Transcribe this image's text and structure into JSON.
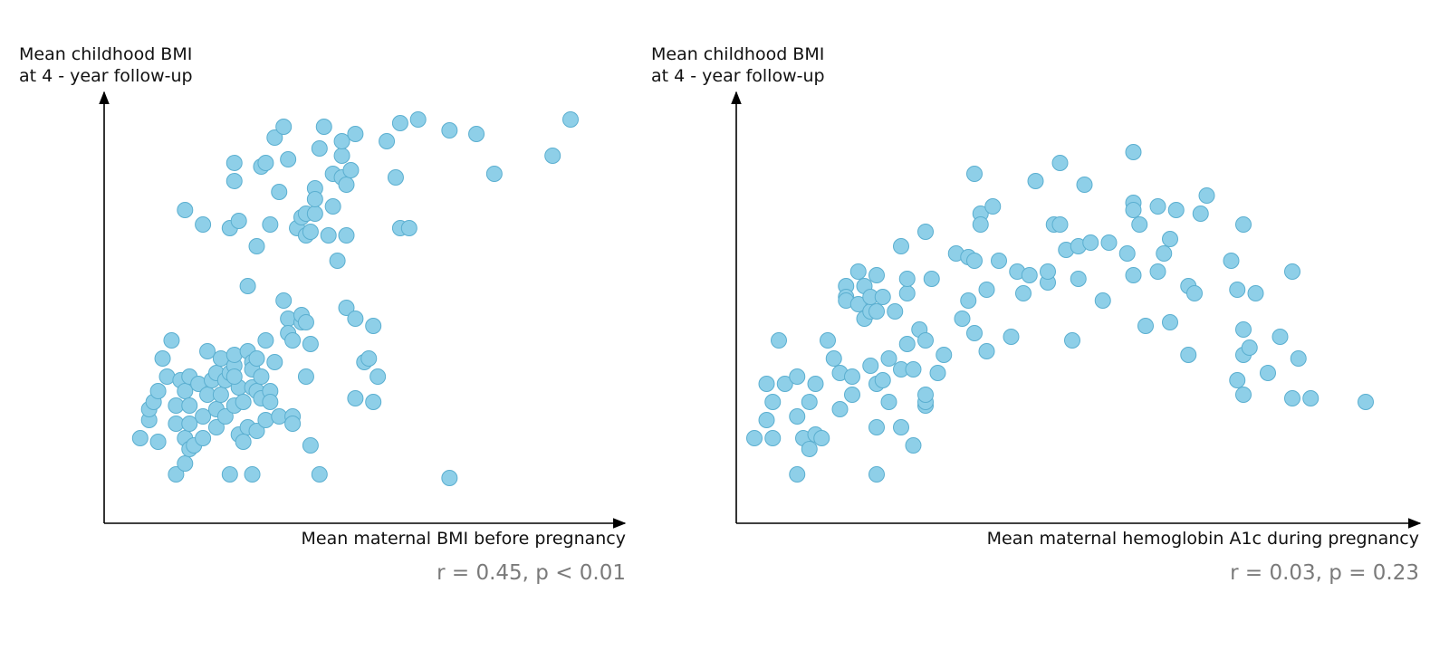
{
  "chart_data": [
    {
      "type": "scatter",
      "ylabel": "Mean childhood BMI\nat 4 - year follow-up",
      "xlabel": "Mean maternal BMI before pregnancy",
      "annotation": "r = 0.45, p < 0.01",
      "axis_ticks": false,
      "grid": false,
      "marker_color": "#8ecfe8",
      "marker_edge_color": "#5bafd0",
      "xlim": [
        0,
        100
      ],
      "ylim": [
        0,
        100
      ],
      "points": [
        [
          4,
          14
        ],
        [
          6,
          19
        ],
        [
          6,
          22
        ],
        [
          7,
          24
        ],
        [
          8,
          13
        ],
        [
          8,
          27
        ],
        [
          10,
          31
        ],
        [
          9,
          36
        ],
        [
          11,
          41
        ],
        [
          12,
          4
        ],
        [
          12,
          23
        ],
        [
          12,
          18
        ],
        [
          13,
          30
        ],
        [
          14,
          14
        ],
        [
          14,
          27
        ],
        [
          15,
          23
        ],
        [
          15,
          31
        ],
        [
          14,
          7
        ],
        [
          15,
          11
        ],
        [
          15,
          18
        ],
        [
          16,
          12
        ],
        [
          17,
          29
        ],
        [
          18,
          20
        ],
        [
          18,
          14
        ],
        [
          19,
          38
        ],
        [
          19,
          26
        ],
        [
          20,
          30
        ],
        [
          21,
          32
        ],
        [
          21,
          17
        ],
        [
          21,
          22
        ],
        [
          22,
          26
        ],
        [
          22,
          36
        ],
        [
          23,
          30
        ],
        [
          23,
          20
        ],
        [
          24,
          32
        ],
        [
          24,
          4
        ],
        [
          25,
          34
        ],
        [
          25,
          37
        ],
        [
          25,
          23
        ],
        [
          26,
          28
        ],
        [
          25,
          31
        ],
        [
          26,
          15
        ],
        [
          27,
          24
        ],
        [
          28,
          17
        ],
        [
          27,
          13
        ],
        [
          28,
          38
        ],
        [
          29,
          35
        ],
        [
          29,
          4
        ],
        [
          29,
          28
        ],
        [
          29,
          33
        ],
        [
          30,
          16
        ],
        [
          30,
          36
        ],
        [
          30,
          27
        ],
        [
          31,
          25
        ],
        [
          31,
          31
        ],
        [
          32,
          41
        ],
        [
          32,
          19
        ],
        [
          33,
          27
        ],
        [
          33,
          24
        ],
        [
          34,
          35
        ],
        [
          36,
          52
        ],
        [
          35,
          20
        ],
        [
          37,
          47
        ],
        [
          37,
          43
        ],
        [
          38,
          41
        ],
        [
          38,
          20
        ],
        [
          38,
          18
        ],
        [
          40,
          46
        ],
        [
          40,
          48
        ],
        [
          41,
          46
        ],
        [
          41,
          31
        ],
        [
          42,
          40
        ],
        [
          42,
          12
        ],
        [
          44,
          4
        ],
        [
          14,
          77
        ],
        [
          18,
          73
        ],
        [
          24,
          72
        ],
        [
          25,
          85
        ],
        [
          25,
          90
        ],
        [
          26,
          74
        ],
        [
          28,
          56
        ],
        [
          30,
          67
        ],
        [
          31,
          89
        ],
        [
          32,
          90
        ],
        [
          33,
          73
        ],
        [
          34,
          97
        ],
        [
          35,
          82
        ],
        [
          36,
          100
        ],
        [
          37,
          91
        ],
        [
          39,
          72
        ],
        [
          40,
          75
        ],
        [
          41,
          70
        ],
        [
          41,
          76
        ],
        [
          42,
          71
        ],
        [
          43,
          83
        ],
        [
          43,
          76
        ],
        [
          43,
          80
        ],
        [
          44,
          94
        ],
        [
          45,
          100
        ],
        [
          46,
          70
        ],
        [
          47,
          87
        ],
        [
          47,
          78
        ],
        [
          48,
          63
        ],
        [
          49,
          92
        ],
        [
          49,
          96
        ],
        [
          49,
          86
        ],
        [
          50,
          84
        ],
        [
          50,
          70
        ],
        [
          51,
          88
        ],
        [
          52,
          98
        ],
        [
          50,
          50
        ],
        [
          52,
          47
        ],
        [
          52,
          25
        ],
        [
          54,
          35
        ],
        [
          55,
          36
        ],
        [
          56,
          45
        ],
        [
          57,
          31
        ],
        [
          56,
          24
        ],
        [
          59,
          96
        ],
        [
          61,
          86
        ],
        [
          62,
          101
        ],
        [
          62,
          72
        ],
        [
          64,
          72
        ],
        [
          66,
          102
        ],
        [
          73,
          99
        ],
        [
          73,
          3
        ],
        [
          79,
          98
        ],
        [
          83,
          87
        ],
        [
          96,
          92
        ],
        [
          100,
          102
        ]
      ]
    },
    {
      "type": "scatter",
      "ylabel": "Mean childhood BMI\nat 4 - year follow-up",
      "xlabel": "Mean maternal hemoglobin A1c during pregnancy",
      "annotation": "r = 0.03, p = 0.23",
      "axis_ticks": false,
      "grid": false,
      "marker_color": "#8ecfe8",
      "marker_edge_color": "#5bafd0",
      "xlim": [
        0,
        100
      ],
      "ylim": [
        0,
        100
      ],
      "points": [
        [
          0,
          14
        ],
        [
          2,
          19
        ],
        [
          2,
          29
        ],
        [
          3,
          24
        ],
        [
          3,
          14
        ],
        [
          4,
          41
        ],
        [
          5,
          29
        ],
        [
          7,
          4
        ],
        [
          7,
          20
        ],
        [
          8,
          14
        ],
        [
          7,
          31
        ],
        [
          9,
          24
        ],
        [
          9,
          11
        ],
        [
          10,
          15
        ],
        [
          10,
          29
        ],
        [
          11,
          14
        ],
        [
          12,
          41
        ],
        [
          13,
          36
        ],
        [
          14,
          22
        ],
        [
          14,
          32
        ],
        [
          15,
          56
        ],
        [
          15,
          53
        ],
        [
          15,
          52
        ],
        [
          16,
          26
        ],
        [
          16,
          31
        ],
        [
          17,
          60
        ],
        [
          17,
          51
        ],
        [
          18,
          56
        ],
        [
          18,
          47
        ],
        [
          19,
          49
        ],
        [
          19,
          53
        ],
        [
          19,
          34
        ],
        [
          20,
          59
        ],
        [
          20,
          17
        ],
        [
          20,
          4
        ],
        [
          20,
          29
        ],
        [
          20,
          49
        ],
        [
          21,
          53
        ],
        [
          21,
          30
        ],
        [
          22,
          36
        ],
        [
          22,
          24
        ],
        [
          23,
          49
        ],
        [
          24,
          17
        ],
        [
          24,
          33
        ],
        [
          24,
          67
        ],
        [
          25,
          40
        ],
        [
          25,
          54
        ],
        [
          25,
          58
        ],
        [
          26,
          33
        ],
        [
          26,
          12
        ],
        [
          27,
          44
        ],
        [
          28,
          23
        ],
        [
          28,
          24
        ],
        [
          28,
          26
        ],
        [
          28,
          71
        ],
        [
          28,
          41
        ],
        [
          29,
          58
        ],
        [
          30,
          32
        ],
        [
          31,
          37
        ],
        [
          33,
          65
        ],
        [
          34,
          47
        ],
        [
          35,
          52
        ],
        [
          35,
          64
        ],
        [
          36,
          63
        ],
        [
          36,
          43
        ],
        [
          36,
          87
        ],
        [
          37,
          76
        ],
        [
          37,
          73
        ],
        [
          38,
          38
        ],
        [
          38,
          55
        ],
        [
          39,
          78
        ],
        [
          40,
          63
        ],
        [
          42,
          42
        ],
        [
          43,
          60
        ],
        [
          44,
          54
        ],
        [
          45,
          59
        ],
        [
          46,
          85
        ],
        [
          48,
          57
        ],
        [
          48,
          60
        ],
        [
          49,
          73
        ],
        [
          50,
          90
        ],
        [
          50,
          73
        ],
        [
          51,
          66
        ],
        [
          52,
          41
        ],
        [
          53,
          67
        ],
        [
          53,
          58
        ],
        [
          54,
          84
        ],
        [
          55,
          68
        ],
        [
          57,
          52
        ],
        [
          58,
          68
        ],
        [
          61,
          65
        ],
        [
          62,
          93
        ],
        [
          62,
          79
        ],
        [
          62,
          77
        ],
        [
          62,
          59
        ],
        [
          63,
          73
        ],
        [
          64,
          45
        ],
        [
          66,
          78
        ],
        [
          66,
          60
        ],
        [
          67,
          65
        ],
        [
          68,
          69
        ],
        [
          68,
          46
        ],
        [
          69,
          77
        ],
        [
          71,
          56
        ],
        [
          71,
          37
        ],
        [
          72,
          54
        ],
        [
          73,
          76
        ],
        [
          74,
          81
        ],
        [
          78,
          63
        ],
        [
          79,
          30
        ],
        [
          79,
          55
        ],
        [
          80,
          73
        ],
        [
          80,
          44
        ],
        [
          80,
          37
        ],
        [
          80,
          26
        ],
        [
          81,
          39
        ],
        [
          82,
          54
        ],
        [
          84,
          32
        ],
        [
          86,
          42
        ],
        [
          88,
          25
        ],
        [
          88,
          60
        ],
        [
          89,
          36
        ],
        [
          91,
          25
        ],
        [
          100,
          24
        ]
      ]
    }
  ]
}
